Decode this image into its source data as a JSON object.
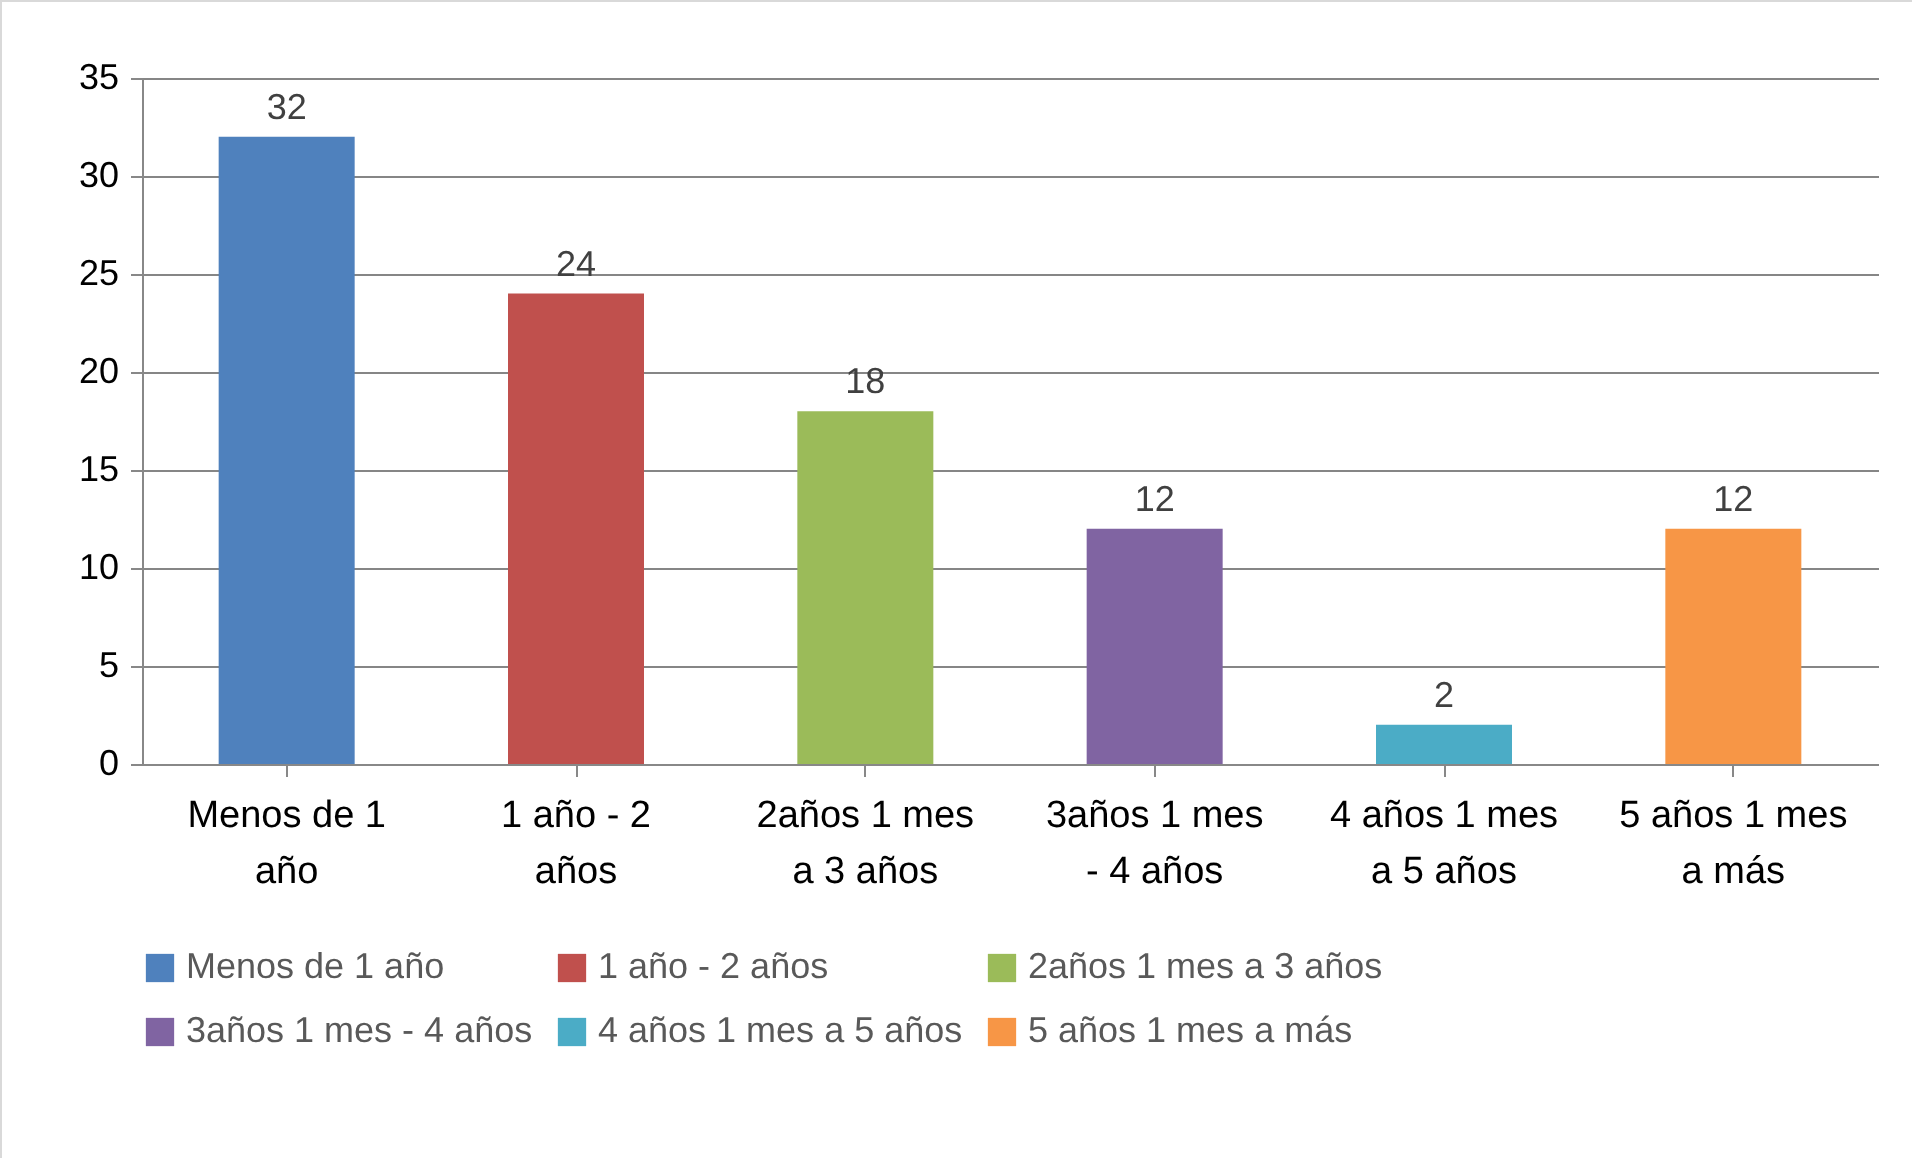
{
  "chart_data": {
    "type": "bar",
    "categories": [
      "Menos de 1 año",
      "1 año - 2 años",
      "2años 1 mes a 3 años",
      "3años 1 mes - 4 años",
      "4 años 1 mes a 5 años",
      "5 años 1 mes a más"
    ],
    "series": [
      {
        "name": "Menos de 1 año",
        "color": "#4f81bd",
        "values": [
          32,
          null,
          null,
          null,
          null,
          null
        ]
      },
      {
        "name": "1 año - 2 años",
        "color": "#c0504d",
        "values": [
          null,
          24,
          null,
          null,
          null,
          null
        ]
      },
      {
        "name": "2años 1 mes  a 3 años",
        "color": "#9bbb59",
        "values": [
          null,
          null,
          18,
          null,
          null,
          null
        ]
      },
      {
        "name": "3años 1 mes - 4 años",
        "color": "#8064a2",
        "values": [
          null,
          null,
          null,
          12,
          null,
          null
        ]
      },
      {
        "name": "4 años 1 mes a 5 años",
        "color": "#4bacc6",
        "values": [
          null,
          null,
          null,
          null,
          2,
          null
        ]
      },
      {
        "name": "5 años 1 mes a más",
        "color": "#f79646",
        "values": [
          null,
          null,
          null,
          null,
          null,
          12
        ]
      }
    ],
    "ylim": [
      0,
      35
    ],
    "yticks": [
      0,
      5,
      10,
      15,
      20,
      25,
      30,
      35
    ],
    "grid": "y",
    "legend": "bottom",
    "data_labels": true
  }
}
